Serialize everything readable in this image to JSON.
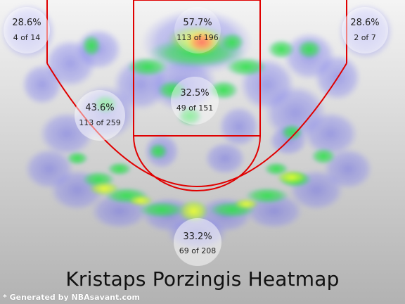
{
  "chart_data": {
    "type": "heatmap",
    "title": "Kristaps Porzingis Heatmap",
    "zones": [
      {
        "zone": "left-corner-three",
        "pct": "28.6%",
        "made": 4,
        "attempts": 14,
        "label": "4 of 14"
      },
      {
        "zone": "restricted-area",
        "pct": "57.7%",
        "made": 113,
        "attempts": 196,
        "label": "113 of 196"
      },
      {
        "zone": "right-corner-three",
        "pct": "28.6%",
        "made": 2,
        "attempts": 7,
        "label": "2 of 7"
      },
      {
        "zone": "left-mid-range",
        "pct": "43.6%",
        "made": 113,
        "attempts": 259,
        "label": "113 of 259"
      },
      {
        "zone": "paint-non-restricted",
        "pct": "32.5%",
        "made": 49,
        "attempts": 151,
        "label": "49 of 151"
      },
      {
        "zone": "above-the-break-three",
        "pct": "33.2%",
        "made": 69,
        "attempts": 208,
        "label": "33.2%",
        "label2": "69 of 208"
      }
    ],
    "colors": {
      "background_top": "#f2f2f2",
      "background_bottom": "#b4b4b4",
      "court_lines": "#e00000",
      "heat_low": "#7a7ae6",
      "heat_mid": "#22dd44",
      "heat_high": "#ff5522"
    }
  },
  "credit": "* Generated by NBAsavant.com"
}
